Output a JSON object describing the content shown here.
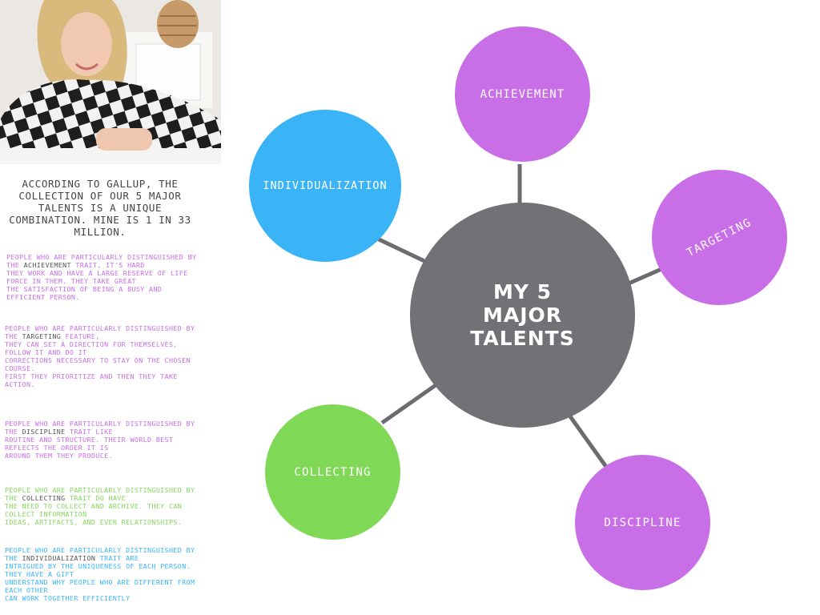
{
  "intro": "ACCORDING TO GALLUP, THE COLLECTION OF OUR 5 MAJOR TALENTS IS A UNIQUE COMBINATION. MINE IS 1 IN 33 MILLION.",
  "colors": {
    "purple": "#c86ee6",
    "blue": "#3ab3f7",
    "green": "#7fd957",
    "center": "#727176",
    "connector": "#6b6b70"
  },
  "paragraphs": [
    {
      "before": "PEOPLE WHO ARE PARTICULARLY DISTINGUISHED BY\nTHE ",
      "keyword": "ACHIEVEMENT",
      "after": " TRAIT, IT'S HARD\nTHEY WORK AND HAVE A LARGE RESERVE OF LIFE\nFORCE IN THEM. THEY TAKE GREAT\nTHE SATISFACTION OF BEING A BUSY AND\nEFFICIENT PERSON.",
      "color": "#c86ee6"
    },
    {
      "before": "PEOPLE WHO ARE PARTICULARLY DISTINGUISHED BY\nTHE ",
      "keyword": "TARGETING",
      "after": " FEATURE,\nTHEY CAN SET A DIRECTION FOR THEMSELVES,\nFOLLOW IT AND DO IT\nCORRECTIONS NECESSARY TO STAY ON THE CHOSEN\nCOURSE.\nFIRST THEY PRIORITIZE AND THEN THEY TAKE\nACTION.",
      "color": "#c86ee6"
    },
    {
      "before": "PEOPLE WHO ARE PARTICULARLY DISTINGUISHED BY\nTHE ",
      "keyword": "DISCIPLINE",
      "after": " TRAIT LIKE\nROUTINE AND STRUCTURE. THEIR WORLD BEST\nREFLECTS THE ORDER IT IS\nAROUND THEM THEY PRODUCE.",
      "color": "#c86ee6"
    },
    {
      "before": "PEOPLE WHO ARE PARTICULARLY DISTINGUISHED BY\nTHE ",
      "keyword": "COLLECTING",
      "after": " TRAIT DO HAVE\nTHE NEED TO COLLECT AND ARCHIVE. THEY CAN\nCOLLECT INFORMATION\nIDEAS, ARTIFACTS, AND EVEN RELATIONSHIPS.",
      "color": "#7fd957"
    },
    {
      "before": "PEOPLE WHO ARE PARTICULARLY DISTINGUISHED BY\nTHE ",
      "keyword": "INDIVIDUALIZATION",
      "after": " TRAIT ARE\nINTRIGUED BY THE UNIQUENESS OF EACH PERSON.\nTHEY HAVE A GIFT\nUNDERSTAND WHY PEOPLE WHO ARE DIFFERENT FROM\nEACH OTHER\nCAN WORK TOGETHER EFFICIENTLY",
      "color": "#3ab3f7"
    }
  ],
  "diagram": {
    "center_label": "MY 5\nMAJOR\nTALENTS",
    "talents": [
      {
        "name": "ACHIEVEMENT",
        "color": "#c86ee6"
      },
      {
        "name": "TARGETING",
        "color": "#c86ee6"
      },
      {
        "name": "DISCIPLINE",
        "color": "#c86ee6"
      },
      {
        "name": "COLLECTING",
        "color": "#7fd957"
      },
      {
        "name": "INDIVIDUALIZATION",
        "color": "#3ab3f7"
      }
    ]
  }
}
